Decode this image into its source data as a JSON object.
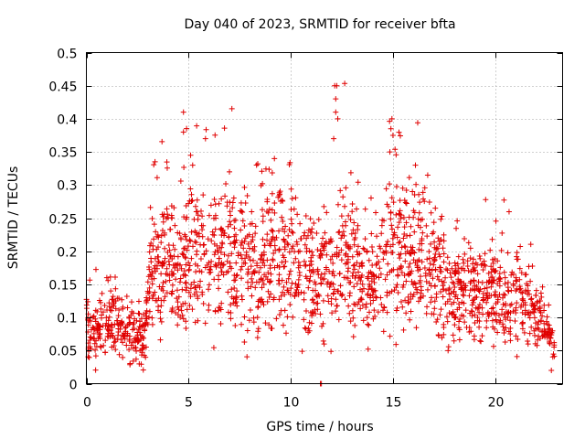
{
  "chart_data": {
    "type": "scatter",
    "title": "Day 040 of 2023, SRMTID for receiver bfta",
    "xlabel": "GPS time / hours",
    "ylabel": "SRMTID / TECUs",
    "xlim": [
      0,
      23.3
    ],
    "ylim": [
      0,
      0.5
    ],
    "x_ticks": [
      0,
      5,
      10,
      15,
      20
    ],
    "y_ticks": [
      0,
      0.05,
      0.1,
      0.15,
      0.2,
      0.25,
      0.3,
      0.35,
      0.4,
      0.45,
      0.5
    ],
    "x_tick_labels": [
      "0",
      "5",
      "10",
      "15",
      "20"
    ],
    "y_tick_labels": [
      "0",
      "0.05",
      "0.1",
      "0.15",
      "0.2",
      "0.25",
      "0.3",
      "0.35",
      "0.4",
      "0.45",
      "0.5"
    ],
    "grid": true,
    "marker": "+",
    "series_color": "#e00000",
    "envelope": [
      {
        "x": 0.0,
        "y": 0.085
      },
      {
        "x": 0.5,
        "y": 0.08
      },
      {
        "x": 1.0,
        "y": 0.09
      },
      {
        "x": 1.5,
        "y": 0.085
      },
      {
        "x": 2.0,
        "y": 0.08
      },
      {
        "x": 2.5,
        "y": 0.07
      },
      {
        "x": 2.9,
        "y": 0.075
      },
      {
        "x": 3.1,
        "y": 0.16
      },
      {
        "x": 3.5,
        "y": 0.17
      },
      {
        "x": 4.0,
        "y": 0.18
      },
      {
        "x": 4.5,
        "y": 0.17
      },
      {
        "x": 5.0,
        "y": 0.19
      },
      {
        "x": 5.5,
        "y": 0.2
      },
      {
        "x": 6.0,
        "y": 0.17
      },
      {
        "x": 6.5,
        "y": 0.19
      },
      {
        "x": 7.0,
        "y": 0.2
      },
      {
        "x": 7.5,
        "y": 0.19
      },
      {
        "x": 8.0,
        "y": 0.17
      },
      {
        "x": 8.5,
        "y": 0.18
      },
      {
        "x": 9.0,
        "y": 0.2
      },
      {
        "x": 9.5,
        "y": 0.2
      },
      {
        "x": 10.0,
        "y": 0.19
      },
      {
        "x": 10.5,
        "y": 0.17
      },
      {
        "x": 11.0,
        "y": 0.16
      },
      {
        "x": 11.5,
        "y": 0.15
      },
      {
        "x": 12.0,
        "y": 0.17
      },
      {
        "x": 12.5,
        "y": 0.19
      },
      {
        "x": 13.0,
        "y": 0.18
      },
      {
        "x": 13.5,
        "y": 0.16
      },
      {
        "x": 14.0,
        "y": 0.15
      },
      {
        "x": 14.5,
        "y": 0.17
      },
      {
        "x": 15.0,
        "y": 0.2
      },
      {
        "x": 15.5,
        "y": 0.21
      },
      {
        "x": 16.0,
        "y": 0.2
      },
      {
        "x": 16.5,
        "y": 0.19
      },
      {
        "x": 17.0,
        "y": 0.17
      },
      {
        "x": 17.5,
        "y": 0.15
      },
      {
        "x": 18.0,
        "y": 0.13
      },
      {
        "x": 18.5,
        "y": 0.14
      },
      {
        "x": 19.0,
        "y": 0.13
      },
      {
        "x": 19.5,
        "y": 0.15
      },
      {
        "x": 20.0,
        "y": 0.13
      },
      {
        "x": 20.5,
        "y": 0.12
      },
      {
        "x": 21.0,
        "y": 0.14
      },
      {
        "x": 21.5,
        "y": 0.12
      },
      {
        "x": 22.0,
        "y": 0.1
      },
      {
        "x": 22.5,
        "y": 0.08
      },
      {
        "x": 22.9,
        "y": 0.05
      }
    ],
    "outliers": [
      {
        "x": 4.75,
        "y": 0.41
      },
      {
        "x": 4.75,
        "y": 0.38
      },
      {
        "x": 5.1,
        "y": 0.345
      },
      {
        "x": 5.2,
        "y": 0.33
      },
      {
        "x": 12.15,
        "y": 0.45
      },
      {
        "x": 12.25,
        "y": 0.45
      },
      {
        "x": 12.2,
        "y": 0.43
      },
      {
        "x": 12.2,
        "y": 0.41
      },
      {
        "x": 12.1,
        "y": 0.37
      },
      {
        "x": 12.3,
        "y": 0.4
      },
      {
        "x": 14.95,
        "y": 0.4
      },
      {
        "x": 14.9,
        "y": 0.385
      },
      {
        "x": 15.0,
        "y": 0.375
      },
      {
        "x": 14.85,
        "y": 0.35
      },
      {
        "x": 11.45,
        "y": 0.0
      },
      {
        "x": 11.5,
        "y": 0.0
      },
      {
        "x": 1.0,
        "y": 0.16
      },
      {
        "x": 7.0,
        "y": 0.32
      },
      {
        "x": 9.2,
        "y": 0.34
      },
      {
        "x": 16.1,
        "y": 0.33
      },
      {
        "x": 16.7,
        "y": 0.315
      },
      {
        "x": 22.75,
        "y": 0.02
      }
    ]
  }
}
